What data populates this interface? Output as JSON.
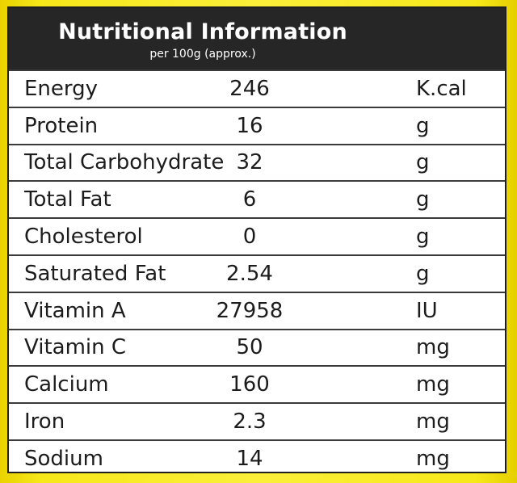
{
  "header": {
    "title": "Nutritional Information",
    "subtitle": "per 100g (approx.)"
  },
  "rows": [
    {
      "name": "Energy",
      "value": "246",
      "unit": "K.cal"
    },
    {
      "name": "Protein",
      "value": "16",
      "unit": "g"
    },
    {
      "name": "Total Carbohydrate",
      "value": "32",
      "unit": "g"
    },
    {
      "name": "Total Fat",
      "value": "6",
      "unit": "g"
    },
    {
      "name": "Cholesterol",
      "value": "0",
      "unit": "g"
    },
    {
      "name": "Saturated Fat",
      "value": "2.54",
      "unit": "g"
    },
    {
      "name": "Vitamin A",
      "value": "27958",
      "unit": "IU"
    },
    {
      "name": "Vitamin C",
      "value": "50",
      "unit": "mg"
    },
    {
      "name": "Calcium",
      "value": "160",
      "unit": "mg"
    },
    {
      "name": "Iron",
      "value": "2.3",
      "unit": "mg"
    },
    {
      "name": "Sodium",
      "value": "14",
      "unit": "mg"
    }
  ],
  "colors": {
    "background": "#f7e81a",
    "header": "#262626",
    "text": "#1c1c1c"
  }
}
